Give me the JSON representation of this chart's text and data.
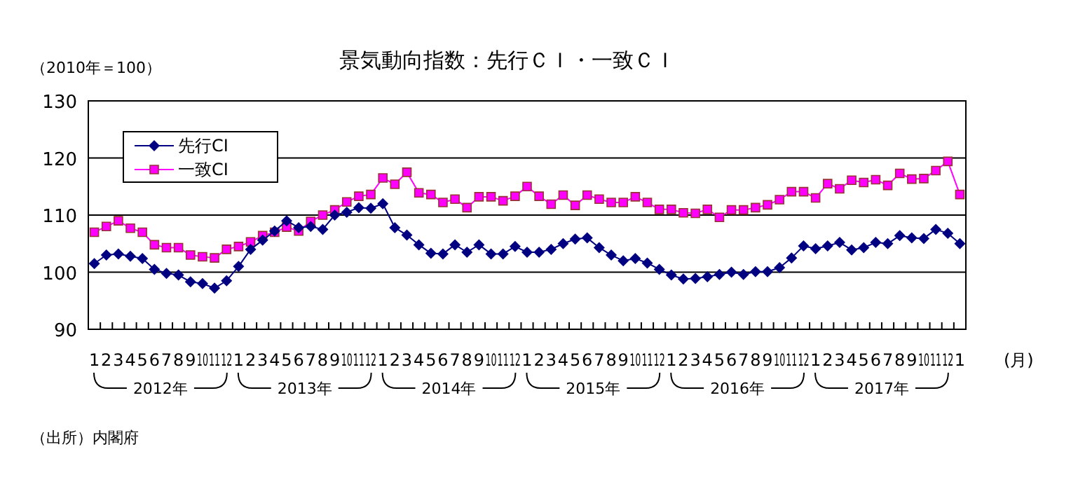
{
  "chart_data": {
    "type": "line",
    "title": "景気動向指数：先行ＣＩ・一致ＣＩ",
    "categories": [
      "1",
      "2",
      "3",
      "4",
      "5",
      "6",
      "7",
      "8",
      "9",
      "10",
      "11",
      "12",
      "1",
      "2",
      "3",
      "4",
      "5",
      "6",
      "7",
      "8",
      "9",
      "10",
      "11",
      "12",
      "1",
      "2",
      "3",
      "4",
      "5",
      "6",
      "7",
      "8",
      "9",
      "10",
      "11",
      "12",
      "1",
      "2",
      "3",
      "4",
      "5",
      "6",
      "7",
      "8",
      "9",
      "10",
      "11",
      "12",
      "1",
      "2",
      "3",
      "4",
      "5",
      "6",
      "7",
      "8",
      "9",
      "10",
      "11",
      "12",
      "1",
      "2",
      "3",
      "4",
      "5",
      "6",
      "7",
      "8",
      "9",
      "10",
      "11",
      "12",
      "1"
    ],
    "series": [
      {
        "name": "先行CI",
        "color": "#000080",
        "marker": "diamond",
        "values": [
          101.5,
          103,
          103.2,
          102.8,
          102.4,
          100.5,
          99.8,
          99.5,
          98.3,
          98,
          97.2,
          98.5,
          101,
          104,
          105.6,
          107.2,
          109,
          107.8,
          108,
          107.5,
          110,
          110.5,
          111.3,
          111.2,
          112,
          107.8,
          106.5,
          104.8,
          103.3,
          103.2,
          104.8,
          103.5,
          104.8,
          103.2,
          103.2,
          104.5,
          103.5,
          103.5,
          104,
          105,
          105.8,
          106,
          104.3,
          103,
          102,
          102.4,
          101.6,
          100.5,
          99.5,
          98.8,
          98.9,
          99.2,
          99.6,
          100,
          99.6,
          100.1,
          100.1,
          100.8,
          102.5,
          104.6,
          104.1,
          104.6,
          105.2,
          103.9,
          104.3,
          105.2,
          105,
          106.4,
          106,
          105.9,
          107.5,
          106.8,
          105
        ]
      },
      {
        "name": "一致CI",
        "color": "#ff00ff",
        "marker": "square",
        "values": [
          107,
          108,
          109,
          107.7,
          107,
          104.8,
          104.3,
          104.3,
          103,
          102.7,
          102.5,
          104,
          104.5,
          105.3,
          106.4,
          107,
          107.9,
          107.2,
          108.9,
          110,
          110.9,
          112.3,
          113.3,
          113.6,
          116.5,
          115.4,
          117.5,
          113.9,
          113.6,
          112.2,
          112.8,
          111.3,
          113.2,
          113.2,
          112.5,
          113.3,
          115,
          113.3,
          111.9,
          113.5,
          111.7,
          113.5,
          112.8,
          112.2,
          112.2,
          113.2,
          112.2,
          111,
          111,
          110.4,
          110.3,
          111,
          109.6,
          110.9,
          110.9,
          111.3,
          111.8,
          112.7,
          114.1,
          114.1,
          113,
          115.5,
          114.6,
          116.1,
          115.7,
          116.2,
          115.2,
          117.3,
          116.3,
          116.4,
          117.8,
          119.4,
          113.6
        ]
      }
    ],
    "ylim": [
      90,
      130
    ],
    "yticks": [
      90,
      100,
      110,
      120,
      130
    ],
    "grid": "y",
    "legend": "top left",
    "annotations": [
      "（2010年＝100）",
      "(月)",
      "（出所）内閣府",
      "2012年",
      "2013年",
      "2014年",
      "2015年",
      "2016年",
      "2017年"
    ]
  }
}
